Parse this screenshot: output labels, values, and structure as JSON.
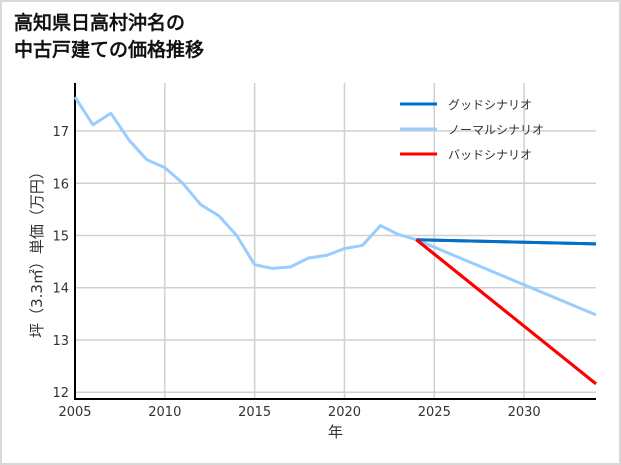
{
  "chart_data": {
    "type": "line",
    "title_lines": [
      "高知県日高村沖名の",
      "中古戸建ての価格推移"
    ],
    "xlabel": "年",
    "ylabel": "坪（3.3㎡）単価（万円）",
    "xlim": [
      2005,
      2034
    ],
    "ylim": [
      11.87,
      17.92
    ],
    "xticks": [
      2005,
      2010,
      2015,
      2020,
      2025,
      2030
    ],
    "yticks": [
      12,
      13,
      14,
      15,
      16,
      17
    ],
    "grid": true,
    "legend_position": "top-right",
    "series": [
      {
        "name": "グッドシナリオ",
        "color": "#0070c8",
        "x": [
          2024,
          2034
        ],
        "y": [
          14.92,
          14.84
        ]
      },
      {
        "name": "ノーマルシナリオ",
        "color": "#99ccff",
        "x": [
          2005,
          2006,
          2007,
          2008,
          2009,
          2010,
          2011,
          2012,
          2013,
          2014,
          2015,
          2016,
          2017,
          2018,
          2019,
          2020,
          2021,
          2022,
          2023,
          2024,
          2034
        ],
        "y": [
          17.65,
          17.12,
          17.34,
          16.83,
          16.45,
          16.3,
          16.0,
          15.59,
          15.38,
          15.0,
          14.44,
          14.37,
          14.4,
          14.57,
          14.62,
          14.75,
          14.81,
          15.19,
          15.02,
          14.92,
          13.48
        ]
      },
      {
        "name": "バッドシナリオ",
        "color": "#ff0000",
        "x": [
          2024,
          2034
        ],
        "y": [
          14.92,
          12.16
        ]
      }
    ]
  }
}
